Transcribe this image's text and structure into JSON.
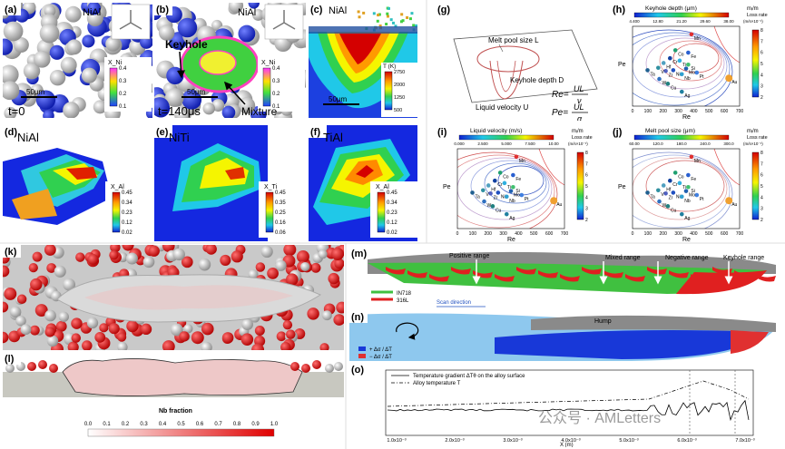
{
  "panels": {
    "a": {
      "letter": "(a)",
      "title": "NiAl",
      "scale": "50μm",
      "time": "t=0",
      "colorbar": {
        "label": "X_Ni",
        "ticks": [
          "0.4",
          "0.3",
          "0.2",
          "0.1"
        ]
      }
    },
    "b": {
      "letter": "(b)",
      "title": "NiAl",
      "keyhole": "Keyhole",
      "mixture": "Mixture",
      "scale": "50μm",
      "time": "t=140μs",
      "colorbar": {
        "label": "X_Ni",
        "ticks": [
          "0.4",
          "0.3",
          "0.2",
          "0.1"
        ]
      }
    },
    "c": {
      "letter": "(c)",
      "title": "NiAl",
      "scale": "50μm",
      "colorbar": {
        "label": "T (K)",
        "ticks": [
          "2750",
          "2000",
          "1250",
          "500"
        ]
      }
    },
    "d": {
      "letter": "(d)",
      "title": "NiAl",
      "colorbar": {
        "label": "X_Al",
        "ticks": [
          "0.45",
          "0.34",
          "0.23",
          "0.12",
          "0.02"
        ]
      }
    },
    "e": {
      "letter": "(e)",
      "title": "NiTi",
      "colorbar": {
        "label": "X_Ti",
        "ticks": [
          "0.45",
          "0.35",
          "0.25",
          "0.16",
          "0.06"
        ]
      }
    },
    "f": {
      "letter": "(f)",
      "title": "TiAl",
      "colorbar": {
        "label": "X_Al",
        "ticks": [
          "0.45",
          "0.34",
          "0.23",
          "0.12",
          "0.02"
        ]
      }
    },
    "g": {
      "letter": "(g)",
      "melt_pool": "Melt pool size L",
      "keyhole": "Keyhole depth D",
      "velocity": "Liquid velocity U",
      "re": {
        "lhs": "Re=",
        "num": "UL",
        "den": "ν"
      },
      "pe": {
        "lhs": "Pe=",
        "num": "UL",
        "den": "α"
      }
    },
    "h": {
      "letter": "(h)",
      "colorbar_title": "Keyhole depth (μm)",
      "colorbar_ticks": [
        "4.400",
        "12.80",
        "21.20",
        "29.60",
        "38.00"
      ]
    },
    "i": {
      "letter": "(i)",
      "colorbar_title": "Liquid velocity (m/s)",
      "colorbar_ticks": [
        "0.000",
        "2.500",
        "5.000",
        "7.500",
        "10.00"
      ]
    },
    "j": {
      "letter": "(j)",
      "colorbar_title": "Melt pool size (μm)",
      "colorbar_ticks": [
        "60.00",
        "120.0",
        "180.0",
        "240.0",
        "300.0"
      ]
    },
    "k": {
      "letter": "(k)"
    },
    "l": {
      "letter": "(l)",
      "colorbar_title": "Nb fraction",
      "colorbar_ticks": [
        "0.0",
        "0.1",
        "0.2",
        "0.3",
        "0.4",
        "0.5",
        "0.6",
        "0.7",
        "0.8",
        "0.9",
        "1.0"
      ]
    },
    "m": {
      "letter": "(m)",
      "positive": "Positive range",
      "mixed": "Mixed range",
      "negative": "Negative range",
      "keyhole": "Keyhole range",
      "legend": [
        "IN718",
        "316L"
      ],
      "scan": "Scan direction"
    },
    "n": {
      "letter": "(n)",
      "hump": "Hump",
      "legend": [
        "+ Δσ / ΔT",
        "− Δσ / ΔT"
      ]
    },
    "o": {
      "letter": "(o)",
      "legend": [
        "Temperature gradient ΔTθ on the alloy surface",
        "Alloy temperature T"
      ],
      "xlabel": "X (m)",
      "xticks": [
        "1.0x10⁻³",
        "2.0x10⁻³",
        "3.0x10⁻³",
        "4.0x10⁻³",
        "5.0x10⁻³",
        "6.0x10⁻³",
        "7.0x10⁻³"
      ]
    }
  },
  "re_pe": {
    "xlabel": "Re",
    "ylabel": "Pe",
    "xticks": [
      "0",
      "100",
      "200",
      "300",
      "400",
      "500",
      "600",
      "700"
    ],
    "loss_title": "mᵢ/m",
    "loss_label": "Loss rate",
    "loss_unit": "(m/s×10⁻¹)",
    "loss_ticks": [
      "8",
      "7",
      "6",
      "5",
      "4",
      "3",
      "2"
    ],
    "elements": [
      "Mn",
      "Fe",
      "Co",
      "Ti",
      "Cr",
      "Hf",
      "Ta",
      "W",
      "Cu",
      "Ni",
      "Nb",
      "Pt",
      "Ag",
      "Au",
      "Si",
      "Zr",
      "V",
      "Mo"
    ]
  },
  "watermark": "公众号 · AMLetters"
}
